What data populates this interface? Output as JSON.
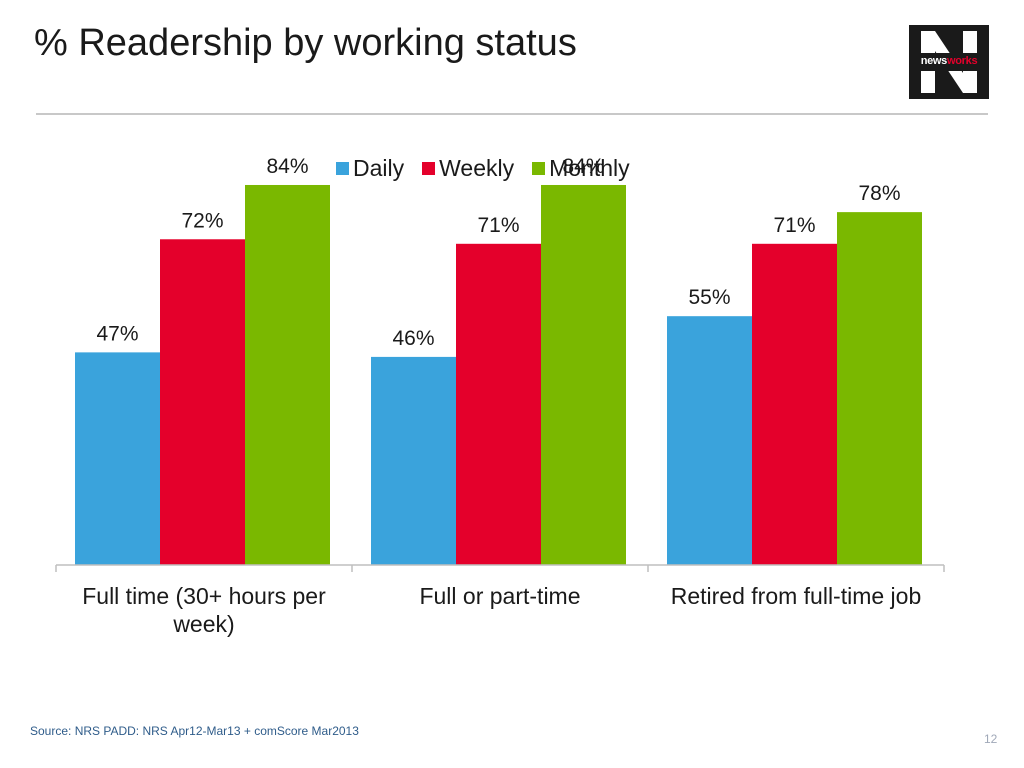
{
  "slide": {
    "title": "% Readership by working status",
    "source": "Source: NRS PADD: NRS Apr12-Mar13 + comScore Mar2013",
    "page_number": "12"
  },
  "logo": {
    "text_part1": "news",
    "text_part2": "works",
    "letter": "N"
  },
  "colors": {
    "daily": "#3aa3dc",
    "weekly": "#e4002b",
    "monthly": "#7ab800",
    "axis": "#bfbfbf"
  },
  "legend": [
    {
      "label": "Daily",
      "color": "#3aa3dc"
    },
    {
      "label": "Weekly",
      "color": "#e4002b"
    },
    {
      "label": "Monthly",
      "color": "#7ab800"
    }
  ],
  "chart_data": {
    "type": "bar",
    "categories": [
      "Full time (30+ hours per week)",
      "Full or part-time",
      "Retired from full-time job"
    ],
    "category_lines": [
      [
        "Full time (30+ hours per",
        "week)"
      ],
      [
        "Full or part-time"
      ],
      [
        "Retired from full-time job"
      ]
    ],
    "series": [
      {
        "name": "Daily",
        "values": [
          47,
          46,
          55
        ],
        "labels": [
          "47%",
          "46%",
          "55%"
        ]
      },
      {
        "name": "Weekly",
        "values": [
          72,
          71,
          71
        ],
        "labels": [
          "72%",
          "71%",
          "71%"
        ]
      },
      {
        "name": "Monthly",
        "values": [
          84,
          84,
          78
        ],
        "labels": [
          "84%",
          "84%",
          "78%"
        ]
      }
    ],
    "ylim": [
      0,
      100
    ],
    "grid": false,
    "legend_position": "top"
  }
}
